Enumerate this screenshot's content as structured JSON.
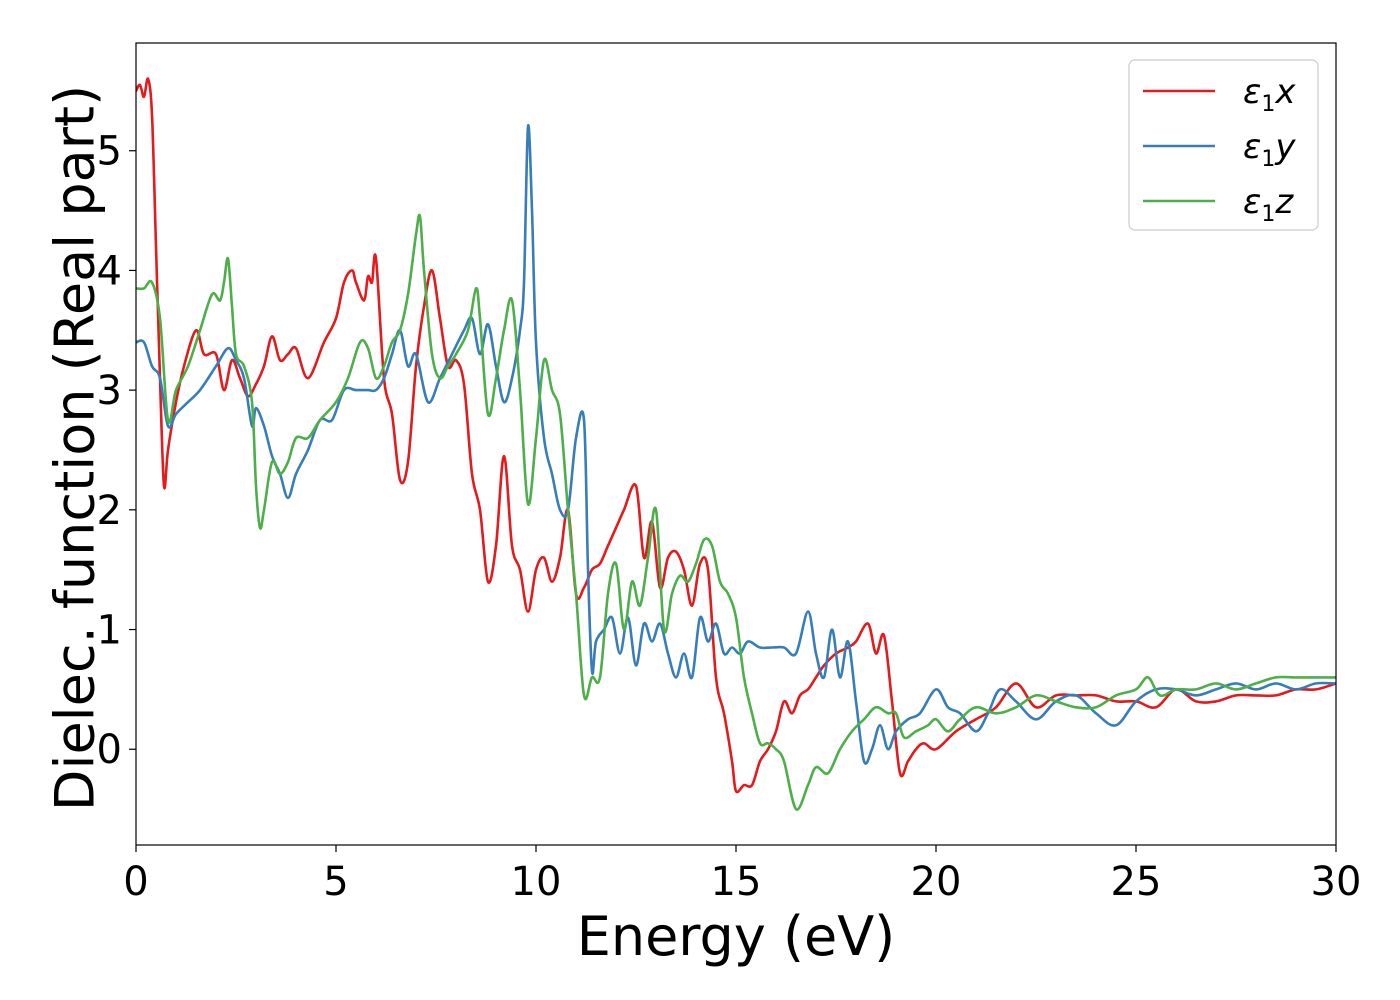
{
  "chart_data": {
    "type": "line",
    "title": "",
    "xlabel": "Energy (eV)",
    "ylabel": "Dielec. function (Real part)",
    "xlim": [
      0,
      30
    ],
    "ylim": [
      -0.8,
      5.9
    ],
    "xticks": [
      0,
      5,
      10,
      15,
      20,
      25,
      30
    ],
    "yticks": [
      0,
      1,
      2,
      3,
      4,
      5
    ],
    "grid": false,
    "legend_position": "top-right",
    "series": [
      {
        "name": "ε1x",
        "legend_main": "ε",
        "legend_sub": "1",
        "legend_tail": "x",
        "color": "#e41a1c",
        "x": [
          0,
          0.1,
          0.2,
          0.3,
          0.4,
          0.5,
          0.6,
          0.7,
          0.8,
          1.0,
          1.2,
          1.5,
          1.7,
          2.0,
          2.2,
          2.4,
          2.6,
          2.8,
          3.0,
          3.2,
          3.4,
          3.6,
          3.8,
          4.0,
          4.3,
          4.7,
          5.0,
          5.2,
          5.4,
          5.5,
          5.7,
          5.8,
          5.9,
          6.0,
          6.2,
          6.4,
          6.6,
          6.8,
          7.0,
          7.2,
          7.4,
          7.6,
          7.8,
          8.0,
          8.2,
          8.4,
          8.6,
          8.8,
          9.0,
          9.2,
          9.4,
          9.6,
          9.8,
          10.0,
          10.2,
          10.4,
          10.6,
          10.8,
          11.0,
          11.2,
          11.4,
          11.6,
          11.8,
          12.0,
          12.2,
          12.5,
          12.7,
          12.9,
          13.1,
          13.3,
          13.5,
          13.7,
          13.9,
          14.1,
          14.3,
          14.5,
          14.7,
          14.9,
          15.0,
          15.2,
          15.4,
          15.6,
          15.8,
          16.0,
          16.2,
          16.4,
          16.6,
          16.8,
          17.0,
          17.2,
          17.5,
          17.8,
          18.0,
          18.3,
          18.5,
          18.7,
          18.9,
          19.1,
          19.3,
          19.5,
          19.7,
          20.0,
          20.5,
          21.0,
          21.5,
          22.0,
          22.5,
          23.0,
          23.5,
          24.0,
          24.5,
          25.0,
          25.5,
          26.0,
          26.5,
          27.0,
          27.5,
          28.0,
          28.5,
          29.0,
          29.5,
          30.0
        ],
        "y": [
          5.5,
          5.55,
          5.45,
          5.6,
          5.3,
          4.2,
          3.1,
          2.2,
          2.5,
          2.9,
          3.2,
          3.5,
          3.3,
          3.3,
          3.0,
          3.25,
          3.1,
          2.95,
          3.05,
          3.2,
          3.45,
          3.25,
          3.3,
          3.35,
          3.1,
          3.4,
          3.6,
          3.9,
          4.0,
          3.9,
          3.75,
          3.95,
          3.9,
          4.1,
          3.1,
          2.8,
          2.25,
          2.4,
          3.2,
          3.7,
          4.0,
          3.6,
          3.2,
          3.25,
          3.05,
          2.3,
          2.0,
          1.4,
          1.7,
          2.45,
          1.7,
          1.5,
          1.15,
          1.5,
          1.6,
          1.4,
          1.6,
          2.0,
          1.3,
          1.35,
          1.5,
          1.55,
          1.7,
          1.85,
          2.0,
          2.2,
          1.6,
          1.9,
          1.35,
          1.6,
          1.65,
          1.5,
          1.2,
          1.55,
          1.5,
          0.6,
          0.3,
          -0.1,
          -0.35,
          -0.3,
          -0.3,
          -0.1,
          0.0,
          0.15,
          0.4,
          0.3,
          0.45,
          0.5,
          0.6,
          0.7,
          0.8,
          0.85,
          0.9,
          1.05,
          0.8,
          0.95,
          0.4,
          -0.2,
          -0.1,
          0.0,
          0.05,
          0.0,
          0.15,
          0.25,
          0.35,
          0.55,
          0.35,
          0.45,
          0.45,
          0.45,
          0.4,
          0.4,
          0.35,
          0.5,
          0.4,
          0.4,
          0.45,
          0.45,
          0.45,
          0.5,
          0.5,
          0.55
        ]
      },
      {
        "name": "ε1y",
        "legend_main": "ε",
        "legend_sub": "1",
        "legend_tail": "y",
        "color": "#377eb8",
        "x": [
          0,
          0.2,
          0.4,
          0.6,
          0.8,
          1.0,
          1.3,
          1.6,
          2.0,
          2.3,
          2.5,
          2.7,
          2.9,
          3.0,
          3.2,
          3.4,
          3.6,
          3.8,
          4.0,
          4.3,
          4.6,
          4.9,
          5.2,
          5.5,
          5.8,
          6.0,
          6.2,
          6.4,
          6.6,
          6.8,
          7.0,
          7.3,
          7.6,
          7.9,
          8.2,
          8.4,
          8.6,
          8.8,
          9.0,
          9.2,
          9.4,
          9.6,
          9.7,
          9.8,
          9.9,
          10.0,
          10.2,
          10.4,
          10.6,
          10.8,
          11.0,
          11.2,
          11.3,
          11.4,
          11.5,
          11.7,
          11.9,
          12.1,
          12.3,
          12.5,
          12.7,
          12.9,
          13.1,
          13.3,
          13.5,
          13.7,
          13.9,
          14.1,
          14.3,
          14.5,
          14.7,
          14.9,
          15.1,
          15.3,
          15.6,
          15.9,
          16.2,
          16.5,
          16.8,
          17.0,
          17.2,
          17.4,
          17.6,
          17.8,
          18.0,
          18.2,
          18.4,
          18.6,
          18.8,
          19.0,
          19.3,
          19.6,
          20.0,
          20.3,
          20.6,
          21.0,
          21.3,
          21.6,
          22.0,
          22.5,
          23.0,
          23.5,
          24.0,
          24.5,
          25.0,
          25.5,
          26.0,
          26.5,
          27.0,
          27.5,
          28.0,
          28.5,
          29.0,
          29.5,
          30.0
        ],
        "y": [
          3.4,
          3.4,
          3.2,
          3.1,
          2.7,
          2.8,
          2.9,
          3.0,
          3.2,
          3.35,
          3.25,
          3.1,
          2.7,
          2.85,
          2.7,
          2.45,
          2.3,
          2.1,
          2.3,
          2.5,
          2.75,
          2.75,
          3.0,
          3.0,
          3.0,
          3.0,
          3.1,
          3.3,
          3.5,
          3.2,
          3.3,
          2.9,
          3.1,
          3.3,
          3.5,
          3.6,
          3.3,
          3.55,
          3.2,
          2.9,
          3.1,
          3.5,
          3.9,
          5.2,
          4.5,
          3.4,
          2.6,
          2.3,
          2.0,
          2.0,
          2.6,
          2.75,
          1.5,
          0.65,
          0.9,
          1.0,
          1.1,
          0.8,
          1.1,
          0.7,
          1.05,
          0.9,
          1.05,
          0.8,
          0.6,
          0.8,
          0.6,
          1.1,
          0.9,
          1.05,
          0.8,
          0.85,
          0.8,
          0.9,
          0.85,
          0.85,
          0.85,
          0.8,
          1.15,
          0.8,
          0.6,
          1.0,
          0.6,
          0.9,
          0.4,
          -0.1,
          0.0,
          0.2,
          0.0,
          0.15,
          0.25,
          0.3,
          0.5,
          0.35,
          0.3,
          0.15,
          0.3,
          0.5,
          0.4,
          0.25,
          0.4,
          0.45,
          0.3,
          0.2,
          0.4,
          0.5,
          0.5,
          0.45,
          0.5,
          0.55,
          0.5,
          0.55,
          0.5,
          0.55,
          0.55
        ]
      },
      {
        "name": "ε1z",
        "legend_main": "ε",
        "legend_sub": "1",
        "legend_tail": "z",
        "color": "#4daf4a",
        "x": [
          0,
          0.2,
          0.4,
          0.6,
          0.8,
          1.0,
          1.3,
          1.6,
          1.9,
          2.1,
          2.2,
          2.3,
          2.4,
          2.5,
          2.7,
          2.9,
          3.0,
          3.1,
          3.2,
          3.4,
          3.6,
          3.8,
          4.0,
          4.3,
          4.6,
          5.0,
          5.3,
          5.6,
          5.8,
          6.0,
          6.2,
          6.4,
          6.6,
          6.8,
          7.0,
          7.1,
          7.2,
          7.4,
          7.6,
          7.8,
          8.0,
          8.3,
          8.5,
          8.6,
          8.8,
          9.0,
          9.2,
          9.4,
          9.6,
          9.8,
          10.0,
          10.2,
          10.4,
          10.6,
          10.8,
          11.0,
          11.2,
          11.4,
          11.6,
          11.8,
          12.0,
          12.2,
          12.4,
          12.6,
          12.8,
          13.0,
          13.2,
          13.4,
          13.6,
          13.8,
          14.0,
          14.2,
          14.4,
          14.6,
          14.8,
          15.0,
          15.2,
          15.4,
          15.6,
          15.8,
          16.0,
          16.2,
          16.5,
          16.8,
          17.0,
          17.3,
          17.6,
          17.9,
          18.2,
          18.5,
          18.8,
          19.0,
          19.2,
          19.5,
          19.8,
          20.0,
          20.3,
          20.6,
          21.0,
          21.5,
          22.0,
          22.5,
          23.0,
          23.5,
          24.0,
          24.5,
          25.0,
          25.3,
          25.6,
          26.0,
          26.5,
          27.0,
          27.5,
          28.0,
          28.5,
          29.0,
          29.5,
          30.0
        ],
        "y": [
          3.85,
          3.85,
          3.9,
          3.6,
          2.75,
          3.0,
          3.2,
          3.5,
          3.8,
          3.75,
          3.9,
          4.1,
          3.7,
          3.3,
          3.2,
          2.9,
          2.2,
          1.85,
          2.0,
          2.4,
          2.3,
          2.4,
          2.6,
          2.6,
          2.75,
          2.9,
          3.1,
          3.4,
          3.35,
          3.1,
          3.2,
          3.4,
          3.5,
          3.8,
          4.3,
          4.45,
          4.0,
          3.3,
          3.1,
          3.2,
          3.3,
          3.5,
          3.85,
          3.6,
          2.8,
          3.1,
          3.5,
          3.75,
          3.0,
          2.05,
          2.6,
          3.25,
          3.0,
          2.8,
          2.0,
          1.3,
          0.45,
          0.6,
          0.6,
          1.3,
          1.55,
          1.0,
          1.4,
          1.2,
          1.6,
          2.0,
          1.0,
          1.3,
          1.45,
          1.4,
          1.55,
          1.75,
          1.7,
          1.4,
          1.3,
          1.1,
          0.6,
          0.3,
          0.05,
          0.05,
          0.0,
          -0.1,
          -0.5,
          -0.3,
          -0.15,
          -0.2,
          0.0,
          0.15,
          0.25,
          0.35,
          0.3,
          0.3,
          0.1,
          0.15,
          0.2,
          0.25,
          0.15,
          0.25,
          0.35,
          0.3,
          0.35,
          0.45,
          0.4,
          0.35,
          0.35,
          0.45,
          0.5,
          0.6,
          0.45,
          0.5,
          0.5,
          0.55,
          0.5,
          0.55,
          0.6,
          0.6,
          0.6,
          0.6
        ]
      }
    ]
  }
}
